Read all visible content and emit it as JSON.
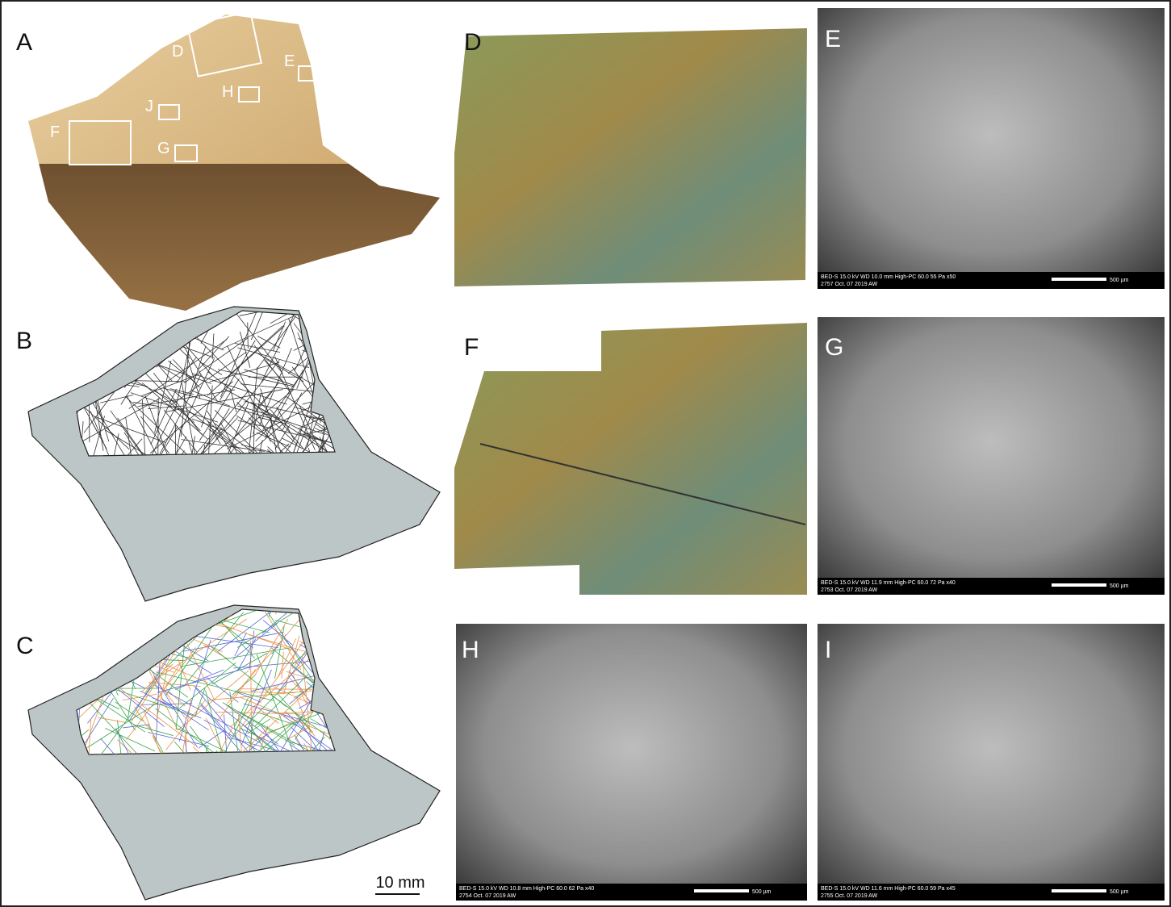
{
  "panels": [
    "A",
    "B",
    "C",
    "D",
    "E",
    "F",
    "G",
    "H",
    "I"
  ],
  "panel_a_boxes": [
    "D",
    "E",
    "H",
    "J",
    "F",
    "G"
  ],
  "scale_bar": "10 mm",
  "sem": [
    {
      "line1": "BED-S  15.0 kV  WD 10.0 mm   High-PC 60.0     55 Pa   x50",
      "line2": "2757   Oct. 07 2019          AW",
      "scale": "500 µm"
    },
    {
      "line1": "BED-S  15.0 kV  WD 11.9 mm   High-PC 60.0     72 Pa   x40",
      "line2": "2753   Oct. 07 2019          AW",
      "scale": "500 µm"
    },
    {
      "line1": "BED-S  15.0 kV  WD 10.8 mm   High-PC 60.0     62 Pa   x40",
      "line2": "2754   Oct. 07 2019          AW",
      "scale": "500 µm"
    },
    {
      "line1": "BED-S  15.0 kV  WD 11.6 mm   High-PC 60.0     59 Pa   x45",
      "line2": "2755   Oct. 07 2019          AW",
      "scale": "500 µm"
    }
  ]
}
